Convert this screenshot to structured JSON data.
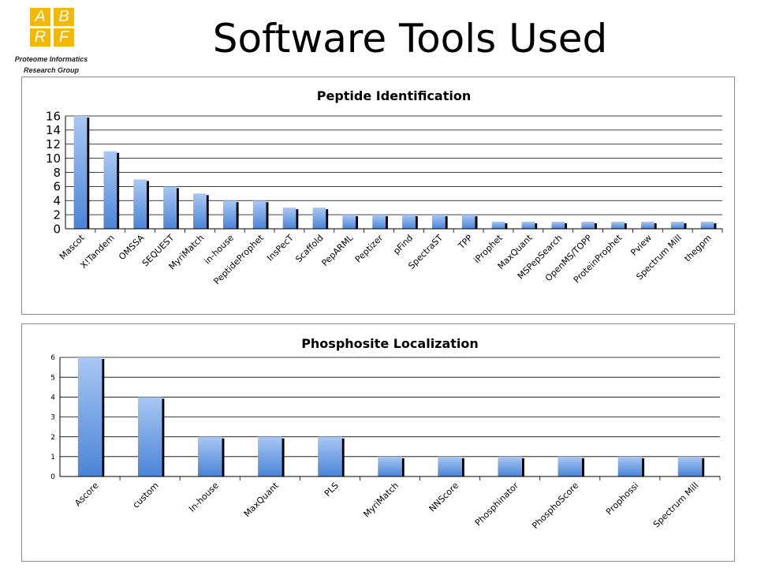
{
  "logo": {
    "letters": [
      "A",
      "B",
      "R",
      "F"
    ],
    "caption_line1": "Proteome Informatics",
    "caption_line2": "Research Group",
    "color": "#f5b800"
  },
  "page_title": "Software Tools Used",
  "colors": {
    "bar_top": "#a9c8f4",
    "bar_bottom": "#4a84d6",
    "bar_shadow": "#000000",
    "grid": "#000000"
  },
  "chart_data": [
    {
      "type": "bar",
      "title": "Peptide Identification",
      "categories": [
        "Mascot",
        "X!Tandem",
        "OMSSA",
        "SEQUEST",
        "MyriMatch",
        "in-house",
        "PeptideProphet",
        "InsPecT",
        "Scaffold",
        "PepARML",
        "Peptizer",
        "pFind",
        "SpectraST",
        "TPP",
        "iProphet",
        "MaxQuant",
        "MSPepSearch",
        "OpenMS/TOPP",
        "ProteinProphet",
        "Pview",
        "Spectrum Mill",
        "thegpm"
      ],
      "values": [
        16,
        11,
        7,
        6,
        5,
        4,
        4,
        3,
        3,
        2,
        2,
        2,
        2,
        2,
        1,
        1,
        1,
        1,
        1,
        1,
        1,
        1
      ],
      "yticks": [
        "0",
        "2",
        "4",
        "6",
        "8",
        "10",
        "12",
        "14",
        "16"
      ],
      "ylim": [
        0,
        16
      ],
      "grid": true,
      "legend": "none"
    },
    {
      "type": "bar",
      "title": "Phosphosite Localization",
      "categories": [
        "Ascore",
        "custom",
        "In-house",
        "MaxQuant",
        "PLS",
        "MyriMatch",
        "NNScore",
        "Phosphinator",
        "PhosphoScore",
        "Prophossi",
        "Spectrum Mill"
      ],
      "values": [
        6,
        4,
        2,
        2,
        2,
        1,
        1,
        1,
        1,
        1,
        1
      ],
      "yticks": [
        "0",
        "1",
        "2",
        "3",
        "4",
        "5",
        "6"
      ],
      "ylim": [
        0,
        6
      ],
      "grid": true,
      "legend": "none"
    }
  ]
}
